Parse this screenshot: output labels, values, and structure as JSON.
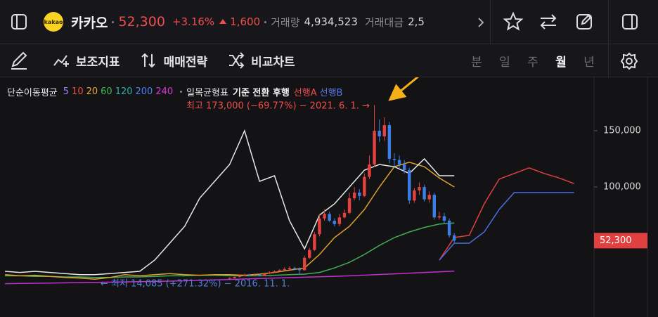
{
  "header": {
    "logo": "kakao",
    "name": "카카오",
    "price": "52,300",
    "change_pct": "+3.16%",
    "change": "1,600",
    "volume_label": "거래량",
    "volume": "4,934,523",
    "amount_label": "거래대금",
    "amount": "2,5"
  },
  "toolbar": {
    "items": [
      "보조지표",
      "매매전략",
      "비교차트"
    ],
    "periods": [
      "분",
      "일",
      "주",
      "월",
      "년"
    ],
    "active_period_index": 3
  },
  "legend": {
    "sma_label": "단순이동평균",
    "sma_periods": [
      5,
      10,
      20,
      60,
      120,
      200,
      240
    ],
    "sma_colors": [
      "#a77bf0",
      "#f0503c",
      "#e8a93a",
      "#43b65a",
      "#2ab0b0",
      "#4a7ff0",
      "#d838d8"
    ],
    "ichimoku_label": "일목균형표",
    "ichimoku_lines": "기준 전환 후행",
    "span_a": "선행A",
    "span_b": "선행B"
  },
  "chart_data": {
    "type": "candlestick",
    "up_color": "#e5413f",
    "down_color": "#3b7ee8",
    "xlim": [
      "2015-03",
      "2025-02"
    ],
    "ylim": [
      -15600,
      192500
    ],
    "yticks": [
      {
        "value": 150000,
        "label": "150,000"
      },
      {
        "value": 100000,
        "label": "100,000"
      }
    ],
    "price_label": {
      "value": 52300,
      "label": "52,300",
      "color": "#e0403f"
    },
    "high_annotation": "최고 173,000 (−69.77%) − 2021. 6. 1. →",
    "low_annotation": "← 최저 14,085 (+271.32%) − 2016. 11. 1.",
    "x": [
      "2019-01",
      "2019-02",
      "2019-03",
      "2019-04",
      "2019-05",
      "2019-06",
      "2019-07",
      "2019-08",
      "2019-09",
      "2019-10",
      "2019-11",
      "2019-12",
      "2020-01",
      "2020-02",
      "2020-03",
      "2020-04",
      "2020-05",
      "2020-06",
      "2020-07",
      "2020-08",
      "2020-09",
      "2020-10",
      "2020-11",
      "2020-12",
      "2021-01",
      "2021-02",
      "2021-03",
      "2021-04",
      "2021-05",
      "2021-06",
      "2021-07",
      "2021-08",
      "2021-09",
      "2021-10",
      "2021-11",
      "2021-12",
      "2022-01",
      "2022-02",
      "2022-03",
      "2022-04",
      "2022-05",
      "2022-06",
      "2022-07",
      "2022-08",
      "2022-09",
      "2022-10"
    ],
    "open": [
      18500,
      19000,
      20000,
      21000,
      22000,
      21500,
      22000,
      21000,
      23000,
      24000,
      25000,
      26000,
      27000,
      28000,
      27000,
      26000,
      37000,
      44000,
      58000,
      72000,
      76000,
      70000,
      67000,
      73000,
      77000,
      90000,
      95000,
      92000,
      109000,
      120000,
      150000,
      145000,
      155000,
      125000,
      124000,
      120000,
      115000,
      88000,
      97000,
      100000,
      89000,
      93000,
      73000,
      74000,
      70000,
      57000
    ],
    "high": [
      19800,
      20800,
      21800,
      23000,
      22800,
      23000,
      22500,
      23800,
      25000,
      26000,
      27000,
      28500,
      29500,
      29000,
      28500,
      39000,
      46000,
      60000,
      76000,
      80000,
      78000,
      72000,
      76000,
      80000,
      95000,
      100000,
      98000,
      112000,
      128000,
      173000,
      160000,
      162000,
      158000,
      130000,
      128000,
      124000,
      117000,
      99000,
      104000,
      102000,
      96000,
      95000,
      78000,
      77000,
      72000,
      59000
    ],
    "low": [
      18000,
      18600,
      19500,
      20500,
      20500,
      21000,
      20500,
      20800,
      22500,
      23500,
      24500,
      25500,
      26500,
      26000,
      23000,
      25500,
      36000,
      43000,
      56000,
      70000,
      69000,
      65000,
      65000,
      72000,
      76000,
      88000,
      88000,
      91000,
      107000,
      118000,
      140000,
      141000,
      121000,
      118000,
      117000,
      112000,
      85000,
      86000,
      93000,
      87000,
      86000,
      71000,
      71000,
      67000,
      55000,
      50500
    ],
    "close": [
      19000,
      20000,
      21000,
      22000,
      21500,
      22000,
      21000,
      23000,
      24000,
      25000,
      26000,
      27000,
      28000,
      27000,
      26000,
      37000,
      44000,
      58000,
      72000,
      76000,
      70000,
      67000,
      73000,
      77000,
      90000,
      95000,
      92000,
      109000,
      120000,
      150000,
      145000,
      155000,
      125000,
      124000,
      120000,
      115000,
      88000,
      97000,
      100000,
      89000,
      93000,
      73000,
      74000,
      70000,
      57000,
      52300
    ],
    "lines_x": [
      "2015-04",
      "2015-07",
      "2015-10",
      "2016-01",
      "2016-04",
      "2016-07",
      "2016-10",
      "2017-01",
      "2017-04",
      "2017-07",
      "2017-10",
      "2018-01",
      "2018-04",
      "2018-07",
      "2018-10",
      "2019-01",
      "2019-04",
      "2019-07",
      "2019-10",
      "2020-01",
      "2020-04",
      "2020-07",
      "2020-10",
      "2021-01",
      "2021-04",
      "2021-07",
      "2021-10",
      "2022-01",
      "2022-04",
      "2022-07",
      "2022-10",
      "2023-01",
      "2023-04",
      "2023-07",
      "2023-10",
      "2024-01",
      "2024-04",
      "2024-07",
      "2024-10"
    ],
    "lines": [
      {
        "color": "#c030d0",
        "values": [
          14000,
          14200,
          14400,
          14600,
          14800,
          15000,
          15200,
          15400,
          15600,
          15800,
          16000,
          16300,
          16600,
          17000,
          17400,
          17800,
          18200,
          18600,
          19000,
          19400,
          19800,
          20200,
          20600,
          21000,
          21600,
          22200,
          22800,
          23400,
          24000,
          24600,
          25200,
          null,
          null,
          null,
          null,
          null,
          null,
          null,
          null
        ]
      },
      {
        "color": "#3fae55",
        "values": [
          21000,
          21000,
          20500,
          20500,
          20000,
          20000,
          19500,
          19500,
          20000,
          20000,
          20500,
          21000,
          21000,
          21500,
          21500,
          21000,
          21000,
          21000,
          21500,
          22000,
          22500,
          24000,
          28000,
          33000,
          40000,
          48000,
          55000,
          60000,
          64000,
          67000,
          68000,
          null,
          null,
          null,
          null,
          null,
          null,
          null,
          null
        ]
      },
      {
        "color": "#e0a030",
        "values": [
          22000,
          21000,
          21500,
          20500,
          19500,
          19000,
          18000,
          19500,
          22000,
          21000,
          22000,
          23000,
          22000,
          21500,
          22000,
          22000,
          21500,
          22500,
          24000,
          26000,
          28000,
          40000,
          55000,
          65000,
          80000,
          100000,
          118000,
          122000,
          118000,
          108000,
          100000,
          null,
          null,
          null,
          null,
          null,
          null,
          null,
          null
        ]
      },
      {
        "color": "#e8e8e8",
        "values": [
          25000,
          24000,
          25000,
          24000,
          23000,
          22000,
          22000,
          23000,
          24000,
          25000,
          35000,
          50000,
          65000,
          90000,
          105000,
          120000,
          150000,
          105000,
          110000,
          70000,
          45000,
          75000,
          85000,
          100000,
          115000,
          120000,
          118000,
          112000,
          125000,
          110000,
          110000,
          null,
          null,
          null,
          null,
          null,
          null,
          null,
          null
        ]
      },
      {
        "color": "#e0403f",
        "values": [
          null,
          null,
          null,
          null,
          null,
          null,
          null,
          null,
          null,
          null,
          null,
          null,
          null,
          null,
          null,
          null,
          null,
          null,
          null,
          null,
          null,
          null,
          null,
          null,
          null,
          null,
          null,
          null,
          null,
          35000,
          55000,
          57000,
          85000,
          107000,
          112000,
          117000,
          112000,
          108000,
          103000
        ]
      },
      {
        "color": "#4b6fe0",
        "values": [
          null,
          null,
          null,
          null,
          null,
          null,
          null,
          null,
          null,
          null,
          null,
          null,
          null,
          null,
          null,
          null,
          null,
          null,
          null,
          null,
          null,
          null,
          null,
          null,
          null,
          null,
          null,
          null,
          null,
          35000,
          50000,
          50000,
          60000,
          80000,
          95000,
          95000,
          95000,
          95000,
          95000
        ]
      }
    ]
  }
}
